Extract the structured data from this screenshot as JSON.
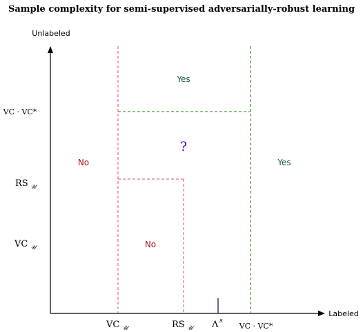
{
  "title": "Sample complexity for semi-supervised adversarially-robust learning",
  "axes": {
    "y_label": "Unlabeled",
    "x_label": "Labeled"
  },
  "x_ticks": {
    "vc_u": {
      "main": "VC",
      "sub": "𝒰"
    },
    "rs_u": {
      "main": "RS",
      "sub": "𝒰"
    },
    "lambda_s": {
      "main": "Λ",
      "sup": "s"
    },
    "vc_vcstar": "VC · VC*"
  },
  "y_ticks": {
    "vc_vcstar": "VC · VC*",
    "rs_u": {
      "main": "RS",
      "sub": "𝒰"
    },
    "vc_u": {
      "main": "VC",
      "sub": "𝒰"
    }
  },
  "regions": {
    "yes_top": "Yes",
    "yes_right": "Yes",
    "no_left": "No",
    "no_bottom": "No",
    "unknown": "?"
  },
  "colors": {
    "red_dash": "#d9534f",
    "green_dash": "#4a9a3a",
    "yes_text": "#1a5c3a",
    "no_text": "#b01010",
    "question": "#6a0dad",
    "lambda_tick": "#1f3a93"
  }
}
